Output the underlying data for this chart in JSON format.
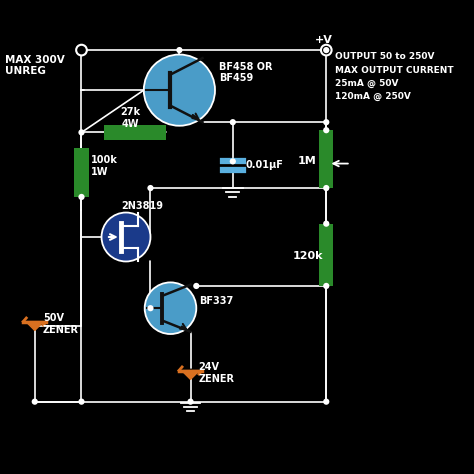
{
  "bg_color": "#000000",
  "wire_color": "#ffffff",
  "resistor_color": "#2a8a2a",
  "transistor_blue": "#4a9cc8",
  "transistor_dark_blue": "#1a3a8a",
  "zener_color": "#d97020",
  "cap_color": "#5ab0e0",
  "text_color": "#ffffff",
  "title_left": "MAX 300V\nUNREG",
  "title_right": "OUTPUT 50 to 250V\nMAX OUTPUT CURRENT\n25mA @ 50V\n120mA @ 250V",
  "label_27k": "27k\n4W",
  "label_100k": "100k\n1W",
  "label_2N3819": "2N3819",
  "label_1M": "1M",
  "label_120k": "120k",
  "label_BF458": "BF458 OR\nBF459",
  "label_BF337": "BF337",
  "label_cap": "0.01μF",
  "label_50V": "50V\nZENER",
  "label_24V": "24V\nZENER",
  "label_pV": "+V",
  "xlim": [
    0,
    10
  ],
  "ylim": [
    0,
    10
  ]
}
